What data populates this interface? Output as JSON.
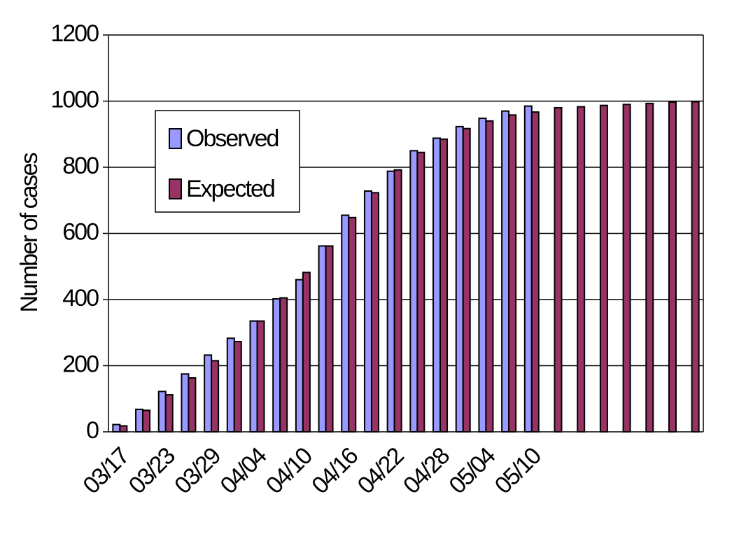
{
  "chart_data": {
    "type": "bar",
    "y_label": "Number of cases",
    "categories": [
      "03/17",
      null,
      "03/23",
      null,
      "03/29",
      null,
      "04/04",
      null,
      "04/10",
      null,
      "04/16",
      null,
      "04/22",
      null,
      "04/28",
      null,
      "05/04",
      null,
      "05/10",
      null,
      null,
      null,
      null,
      null,
      null,
      null
    ],
    "series": [
      {
        "name": "Observed",
        "color": "#9999ff",
        "values": [
          22,
          68,
          122,
          175,
          232,
          283,
          335,
          402,
          460,
          562,
          655,
          728,
          788,
          850,
          888,
          923,
          948,
          970,
          985,
          null,
          null,
          null,
          null,
          null,
          null,
          null
        ]
      },
      {
        "name": "Expected",
        "color": "#993366",
        "values": [
          18,
          65,
          112,
          163,
          215,
          273,
          335,
          405,
          482,
          562,
          648,
          723,
          792,
          845,
          885,
          917,
          940,
          958,
          967,
          980,
          983,
          987,
          990,
          993,
          997,
          998
        ]
      }
    ],
    "ylim": [
      0,
      1200
    ],
    "yticks": [
      0,
      200,
      400,
      600,
      800,
      1000,
      1200
    ],
    "grid": true
  }
}
